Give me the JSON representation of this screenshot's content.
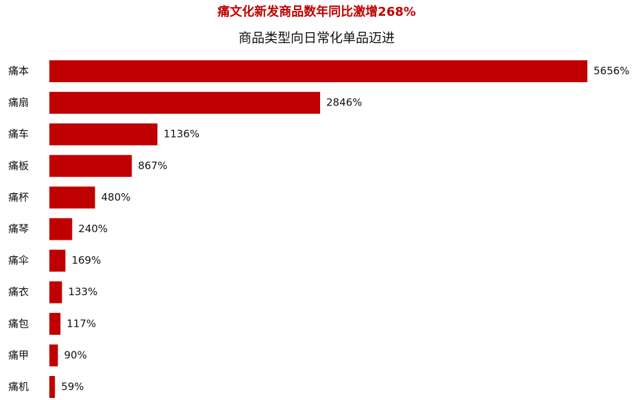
{
  "chart_data": {
    "type": "bar",
    "orientation": "horizontal",
    "title": "痛文化新发商品数年同比激增268%",
    "subtitle": "商品类型向日常化单品迈进",
    "categories": [
      "痛本",
      "痛扇",
      "痛车",
      "痛板",
      "痛杯",
      "痛琴",
      "痛伞",
      "痛衣",
      "痛包",
      "痛甲",
      "痛机"
    ],
    "values": [
      5656,
      2846,
      1136,
      867,
      480,
      240,
      169,
      133,
      117,
      90,
      59
    ],
    "value_labels": [
      "5656%",
      "2846%",
      "1136%",
      "867%",
      "480%",
      "240%",
      "169%",
      "133%",
      "117%",
      "90%",
      "59%"
    ],
    "color": "#c00000",
    "title_color": "#c00000"
  }
}
